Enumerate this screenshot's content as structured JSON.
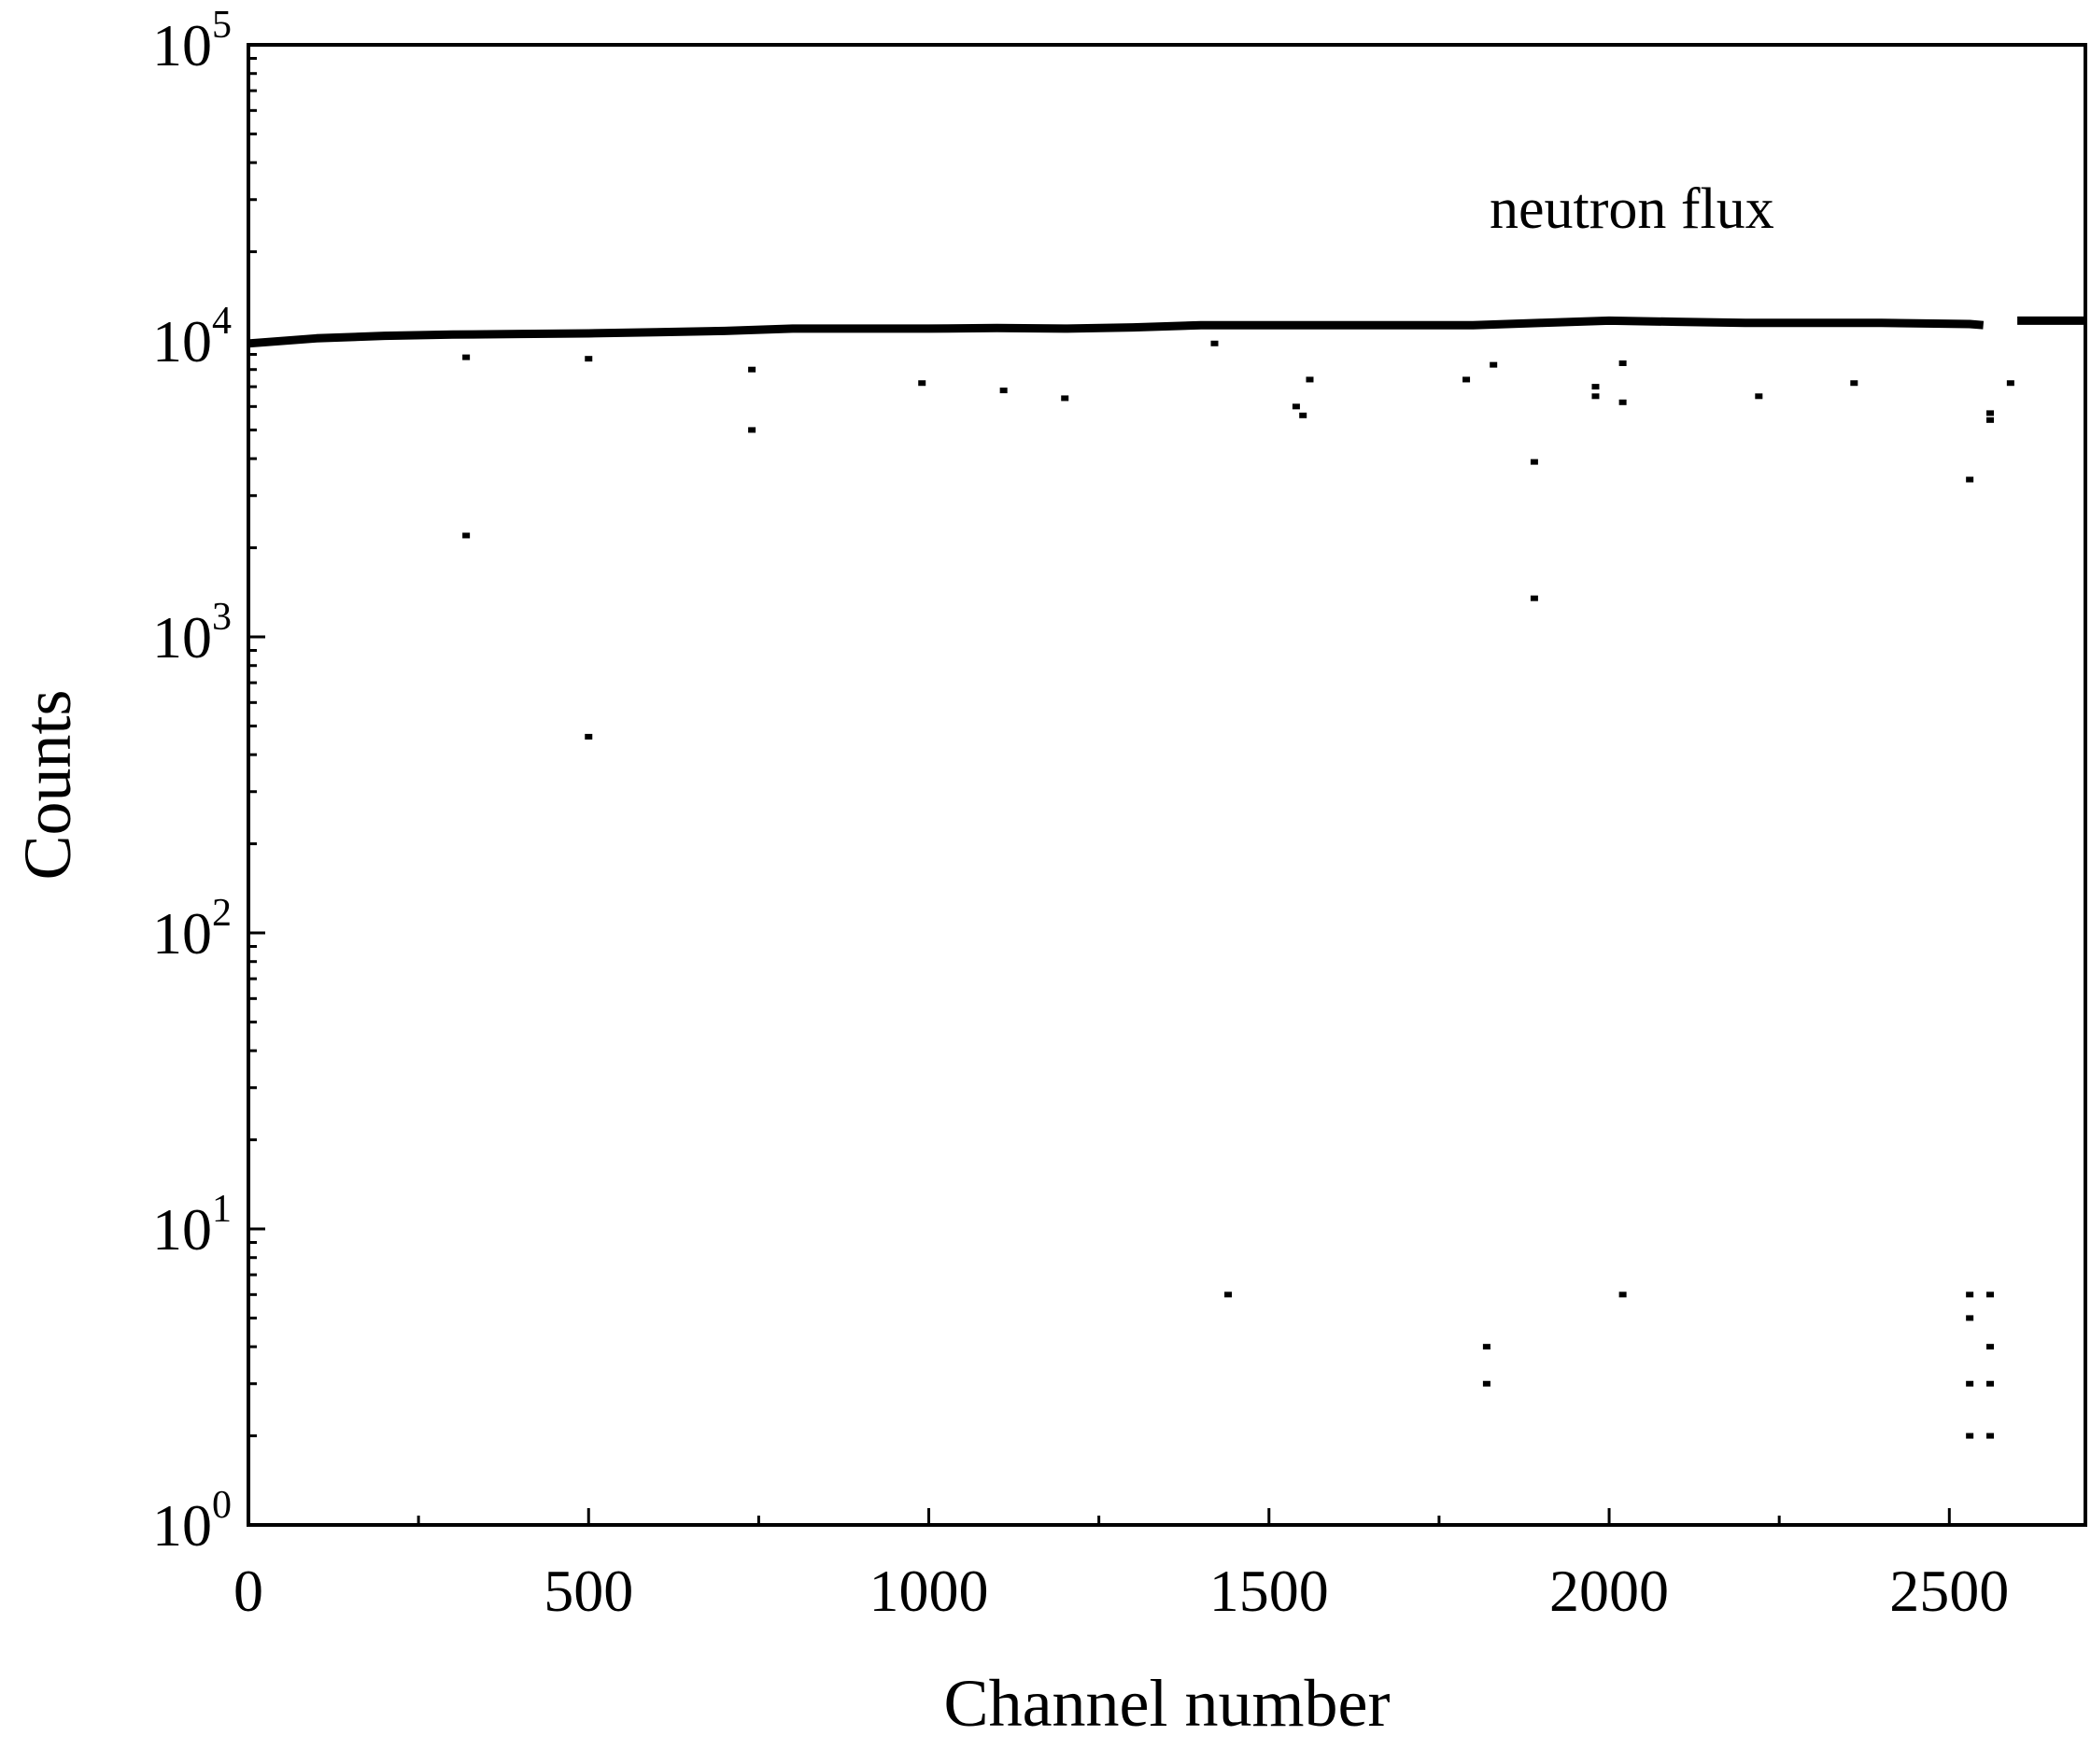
{
  "chart_data": {
    "type": "scatter",
    "title": "",
    "xlabel": "Channel number",
    "ylabel": "Counts",
    "xlim": [
      0,
      2700
    ],
    "ylim": [
      1,
      100000
    ],
    "yscale": "log",
    "grid": false,
    "x_ticks": [
      {
        "value": 0,
        "label": "0"
      },
      {
        "value": 500,
        "label": "500"
      },
      {
        "value": 1000,
        "label": "1000"
      },
      {
        "value": 1500,
        "label": "1500"
      },
      {
        "value": 2000,
        "label": "2000"
      },
      {
        "value": 2500,
        "label": "2500"
      }
    ],
    "y_ticks": [
      {
        "value": 1,
        "base": "10",
        "exp": "0"
      },
      {
        "value": 10,
        "base": "10",
        "exp": "1"
      },
      {
        "value": 100,
        "base": "10",
        "exp": "2"
      },
      {
        "value": 1000,
        "base": "10",
        "exp": "3"
      },
      {
        "value": 10000,
        "base": "10",
        "exp": "4"
      },
      {
        "value": 100000,
        "base": "10",
        "exp": "5"
      }
    ],
    "annotations": [
      {
        "text": "neutron flux"
      }
    ],
    "series": [
      {
        "main_band": [
          [
            0,
            9800
          ],
          [
            100,
            10200
          ],
          [
            200,
            10400
          ],
          [
            300,
            10500
          ],
          [
            400,
            10550
          ],
          [
            500,
            10600
          ],
          [
            600,
            10700
          ],
          [
            700,
            10800
          ],
          [
            800,
            11000
          ],
          [
            900,
            11000
          ],
          [
            1000,
            11000
          ],
          [
            1100,
            11050
          ],
          [
            1200,
            11000
          ],
          [
            1300,
            11100
          ],
          [
            1400,
            11300
          ],
          [
            1500,
            11300
          ],
          [
            1600,
            11300
          ],
          [
            1700,
            11300
          ],
          [
            1800,
            11300
          ],
          [
            1900,
            11500
          ],
          [
            2000,
            11700
          ],
          [
            2100,
            11600
          ],
          [
            2200,
            11500
          ],
          [
            2300,
            11500
          ],
          [
            2400,
            11500
          ],
          [
            2530,
            11400
          ],
          [
            2550,
            11300
          ],
          [
            2600,
            11700
          ],
          [
            2700,
            11700
          ]
        ],
        "outliers": [
          [
            320,
            8800
          ],
          [
            320,
            2200
          ],
          [
            500,
            8700
          ],
          [
            500,
            460
          ],
          [
            740,
            8000
          ],
          [
            740,
            5000
          ],
          [
            990,
            7200
          ],
          [
            1110,
            6800
          ],
          [
            1200,
            6400
          ],
          [
            1420,
            9800
          ],
          [
            1540,
            6000
          ],
          [
            1550,
            5600
          ],
          [
            1560,
            7400
          ],
          [
            1790,
            7400
          ],
          [
            1830,
            8300
          ],
          [
            1890,
            3900
          ],
          [
            1890,
            1350
          ],
          [
            1980,
            7000
          ],
          [
            1980,
            6500
          ],
          [
            2020,
            8400
          ],
          [
            2020,
            6200
          ],
          [
            2220,
            6500
          ],
          [
            2360,
            7200
          ],
          [
            2530,
            3400
          ],
          [
            2560,
            5700
          ],
          [
            2560,
            5400
          ],
          [
            2590,
            7200
          ],
          [
            1440,
            6
          ],
          [
            2020,
            6
          ],
          [
            1820,
            4
          ],
          [
            1820,
            3
          ],
          [
            2530,
            6
          ],
          [
            2560,
            6
          ],
          [
            2530,
            5
          ],
          [
            2560,
            4
          ],
          [
            2530,
            3
          ],
          [
            2560,
            3
          ],
          [
            2530,
            2
          ],
          [
            2560,
            2
          ]
        ]
      }
    ]
  }
}
